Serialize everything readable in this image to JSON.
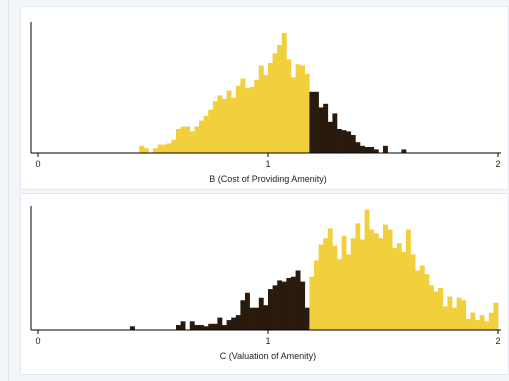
{
  "colors": {
    "yellow": "#f2cf3d",
    "dark": "#2a1a0e",
    "background": "#f3f6f9",
    "panel": "#ffffff",
    "axis": "#000000"
  },
  "chart_data": [
    {
      "type": "bar",
      "subtype": "histogram",
      "xlabel": "B (Cost of Providing Amenity)",
      "ylabel": "",
      "xlim": [
        0,
        2
      ],
      "xticks": [
        "0",
        "1",
        "2"
      ],
      "bin_width": 0.02,
      "y_unit": "relative frequency (0-1, tallest bin = 1)",
      "grid": false,
      "legend": "none",
      "series": [
        {
          "color": "yellow",
          "bins": [
            {
              "x": 0.44,
              "y": 0.06
            },
            {
              "x": 0.46,
              "y": 0.04
            },
            {
              "x": 0.48,
              "y": 0.0
            },
            {
              "x": 0.5,
              "y": 0.04
            },
            {
              "x": 0.52,
              "y": 0.07
            },
            {
              "x": 0.54,
              "y": 0.07
            },
            {
              "x": 0.56,
              "y": 0.08
            },
            {
              "x": 0.58,
              "y": 0.11
            },
            {
              "x": 0.6,
              "y": 0.2
            },
            {
              "x": 0.62,
              "y": 0.22
            },
            {
              "x": 0.64,
              "y": 0.22
            },
            {
              "x": 0.66,
              "y": 0.18
            },
            {
              "x": 0.68,
              "y": 0.22
            },
            {
              "x": 0.7,
              "y": 0.27
            },
            {
              "x": 0.72,
              "y": 0.31
            },
            {
              "x": 0.74,
              "y": 0.36
            },
            {
              "x": 0.76,
              "y": 0.43
            },
            {
              "x": 0.78,
              "y": 0.48
            },
            {
              "x": 0.8,
              "y": 0.45
            },
            {
              "x": 0.82,
              "y": 0.52
            },
            {
              "x": 0.84,
              "y": 0.46
            },
            {
              "x": 0.86,
              "y": 0.56
            },
            {
              "x": 0.88,
              "y": 0.62
            },
            {
              "x": 0.9,
              "y": 0.54
            },
            {
              "x": 0.92,
              "y": 0.55
            },
            {
              "x": 0.94,
              "y": 0.61
            },
            {
              "x": 0.96,
              "y": 0.73
            },
            {
              "x": 0.98,
              "y": 0.65
            },
            {
              "x": 1.0,
              "y": 0.75
            },
            {
              "x": 1.02,
              "y": 0.83
            },
            {
              "x": 1.04,
              "y": 0.9
            },
            {
              "x": 1.06,
              "y": 1.0
            },
            {
              "x": 1.08,
              "y": 0.78
            },
            {
              "x": 1.1,
              "y": 0.63
            },
            {
              "x": 1.12,
              "y": 0.74
            },
            {
              "x": 1.14,
              "y": 0.73
            },
            {
              "x": 1.16,
              "y": 0.66
            }
          ]
        },
        {
          "color": "dark",
          "bins": [
            {
              "x": 1.18,
              "y": 0.51
            },
            {
              "x": 1.2,
              "y": 0.51
            },
            {
              "x": 1.22,
              "y": 0.38
            },
            {
              "x": 1.24,
              "y": 0.41
            },
            {
              "x": 1.26,
              "y": 0.26
            },
            {
              "x": 1.28,
              "y": 0.33
            },
            {
              "x": 1.3,
              "y": 0.2
            },
            {
              "x": 1.32,
              "y": 0.19
            },
            {
              "x": 1.34,
              "y": 0.18
            },
            {
              "x": 1.36,
              "y": 0.15
            },
            {
              "x": 1.38,
              "y": 0.09
            },
            {
              "x": 1.4,
              "y": 0.06
            },
            {
              "x": 1.42,
              "y": 0.05
            },
            {
              "x": 1.44,
              "y": 0.05
            },
            {
              "x": 1.46,
              "y": 0.03
            },
            {
              "x": 1.48,
              "y": 0.0
            },
            {
              "x": 1.5,
              "y": 0.06
            },
            {
              "x": 1.52,
              "y": 0.0
            },
            {
              "x": 1.54,
              "y": 0.0
            },
            {
              "x": 1.56,
              "y": 0.0
            },
            {
              "x": 1.58,
              "y": 0.03
            }
          ]
        }
      ]
    },
    {
      "type": "bar",
      "subtype": "histogram",
      "xlabel": "C (Valuation of Amenity)",
      "ylabel": "",
      "xlim": [
        0,
        2
      ],
      "xticks": [
        "0",
        "1",
        "2"
      ],
      "bin_width": 0.02,
      "y_unit": "relative frequency (0-1, tallest bin = 1)",
      "grid": false,
      "legend": "none",
      "series": [
        {
          "color": "dark",
          "bins": [
            {
              "x": 0.4,
              "y": 0.03
            },
            {
              "x": 0.42,
              "y": 0.0
            },
            {
              "x": 0.44,
              "y": 0.0
            },
            {
              "x": 0.46,
              "y": 0.0
            },
            {
              "x": 0.48,
              "y": 0.0
            },
            {
              "x": 0.5,
              "y": 0.0
            },
            {
              "x": 0.52,
              "y": 0.0
            },
            {
              "x": 0.54,
              "y": 0.0
            },
            {
              "x": 0.56,
              "y": 0.0
            },
            {
              "x": 0.58,
              "y": 0.0
            },
            {
              "x": 0.6,
              "y": 0.04
            },
            {
              "x": 0.62,
              "y": 0.07
            },
            {
              "x": 0.64,
              "y": 0.0
            },
            {
              "x": 0.66,
              "y": 0.07
            },
            {
              "x": 0.68,
              "y": 0.04
            },
            {
              "x": 0.7,
              "y": 0.04
            },
            {
              "x": 0.72,
              "y": 0.03
            },
            {
              "x": 0.74,
              "y": 0.05
            },
            {
              "x": 0.76,
              "y": 0.05
            },
            {
              "x": 0.78,
              "y": 0.1
            },
            {
              "x": 0.8,
              "y": 0.04
            },
            {
              "x": 0.82,
              "y": 0.08
            },
            {
              "x": 0.84,
              "y": 0.1
            },
            {
              "x": 0.86,
              "y": 0.12
            },
            {
              "x": 0.88,
              "y": 0.24
            },
            {
              "x": 0.9,
              "y": 0.3
            },
            {
              "x": 0.92,
              "y": 0.18
            },
            {
              "x": 0.94,
              "y": 0.18
            },
            {
              "x": 0.96,
              "y": 0.26
            },
            {
              "x": 0.98,
              "y": 0.2
            },
            {
              "x": 1.0,
              "y": 0.33
            },
            {
              "x": 1.02,
              "y": 0.36
            },
            {
              "x": 1.04,
              "y": 0.4
            },
            {
              "x": 1.06,
              "y": 0.39
            },
            {
              "x": 1.08,
              "y": 0.42
            },
            {
              "x": 1.1,
              "y": 0.43
            },
            {
              "x": 1.12,
              "y": 0.48
            },
            {
              "x": 1.14,
              "y": 0.39
            },
            {
              "x": 1.16,
              "y": 0.18
            }
          ]
        },
        {
          "color": "yellow",
          "bins": [
            {
              "x": 1.18,
              "y": 0.43
            },
            {
              "x": 1.2,
              "y": 0.56
            },
            {
              "x": 1.22,
              "y": 0.69
            },
            {
              "x": 1.24,
              "y": 0.74
            },
            {
              "x": 1.26,
              "y": 0.82
            },
            {
              "x": 1.28,
              "y": 0.68
            },
            {
              "x": 1.3,
              "y": 0.57
            },
            {
              "x": 1.32,
              "y": 0.76
            },
            {
              "x": 1.34,
              "y": 0.61
            },
            {
              "x": 1.36,
              "y": 0.74
            },
            {
              "x": 1.38,
              "y": 0.86
            },
            {
              "x": 1.4,
              "y": 0.73
            },
            {
              "x": 1.42,
              "y": 0.97
            },
            {
              "x": 1.44,
              "y": 0.81
            },
            {
              "x": 1.46,
              "y": 0.78
            },
            {
              "x": 1.48,
              "y": 0.74
            },
            {
              "x": 1.5,
              "y": 0.85
            },
            {
              "x": 1.52,
              "y": 0.81
            },
            {
              "x": 1.54,
              "y": 0.66
            },
            {
              "x": 1.56,
              "y": 0.7
            },
            {
              "x": 1.58,
              "y": 0.63
            },
            {
              "x": 1.6,
              "y": 0.81
            },
            {
              "x": 1.62,
              "y": 0.61
            },
            {
              "x": 1.64,
              "y": 0.48
            },
            {
              "x": 1.66,
              "y": 0.52
            },
            {
              "x": 1.68,
              "y": 0.45
            },
            {
              "x": 1.7,
              "y": 0.36
            },
            {
              "x": 1.72,
              "y": 0.31
            },
            {
              "x": 1.74,
              "y": 0.34
            },
            {
              "x": 1.76,
              "y": 0.19
            },
            {
              "x": 1.78,
              "y": 0.27
            },
            {
              "x": 1.8,
              "y": 0.18
            },
            {
              "x": 1.82,
              "y": 0.26
            },
            {
              "x": 1.84,
              "y": 0.24
            },
            {
              "x": 1.86,
              "y": 0.09
            },
            {
              "x": 1.88,
              "y": 0.14
            },
            {
              "x": 1.9,
              "y": 0.08
            },
            {
              "x": 1.92,
              "y": 0.12
            },
            {
              "x": 1.94,
              "y": 0.07
            },
            {
              "x": 1.96,
              "y": 0.14
            },
            {
              "x": 1.98,
              "y": 0.22
            }
          ]
        }
      ]
    }
  ]
}
